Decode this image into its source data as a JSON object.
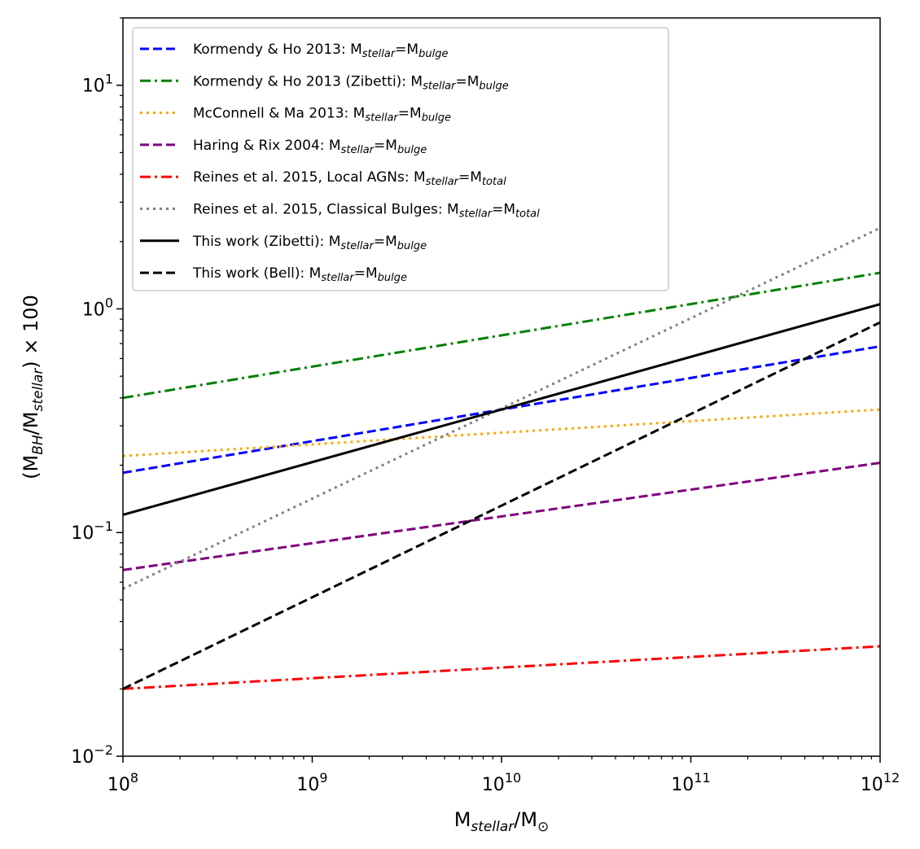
{
  "chart_data": {
    "type": "line",
    "xscale": "log",
    "yscale": "log",
    "xlim": [
      100000000.0,
      1000000000000.0
    ],
    "ylim": [
      0.01,
      20
    ],
    "legend_position": "upper-left",
    "x_ticks": [
      {
        "base": "10",
        "exp": "8"
      },
      {
        "base": "10",
        "exp": "9"
      },
      {
        "base": "10",
        "exp": "10"
      },
      {
        "base": "10",
        "exp": "11"
      },
      {
        "base": "10",
        "exp": "12"
      }
    ],
    "y_ticks": [
      {
        "value": 0.01,
        "base": "10",
        "exp": "−2"
      },
      {
        "value": 0.1,
        "base": "10",
        "exp": "−1"
      },
      {
        "value": 1,
        "base": "10",
        "exp": "0"
      },
      {
        "value": 10,
        "base": "10",
        "exp": "1"
      }
    ],
    "xlabel": {
      "main": "M",
      "sub": "stellar",
      "rest": "/M",
      "symbol": "⊙"
    },
    "ylabel": {
      "p1": "(M",
      "sub1": "BH",
      "p2": "/M",
      "sub2": "stellar",
      "p3": ") × 100"
    },
    "series": [
      {
        "name": "Kormendy & Ho 2013: M",
        "sub1": "stellar",
        "mid": "=M",
        "sub2": "bulge",
        "color": "#0000ff",
        "dash": "dashed",
        "x": [
          100000000.0,
          1000000000000.0
        ],
        "y": [
          0.185,
          0.68
        ]
      },
      {
        "name": "Kormendy & Ho 2013 (Zibetti): M",
        "sub1": "stellar",
        "mid": "=M",
        "sub2": "bulge",
        "color": "#008000",
        "dash": "dashdot",
        "x": [
          100000000.0,
          1000000000000.0
        ],
        "y": [
          0.4,
          1.45
        ]
      },
      {
        "name": "McConnell & Ma 2013: M",
        "sub1": "stellar",
        "mid": "=M",
        "sub2": "bulge",
        "color": "#ffa500",
        "dash": "dotted",
        "x": [
          100000000.0,
          1000000000000.0
        ],
        "y": [
          0.22,
          0.355
        ]
      },
      {
        "name": "Haring & Rix 2004: M",
        "sub1": "stellar",
        "mid": "=M",
        "sub2": "bulge",
        "color": "#800080",
        "dash": "dashed",
        "x": [
          100000000.0,
          1000000000000.0
        ],
        "y": [
          0.068,
          0.205
        ]
      },
      {
        "name": "Reines et al. 2015, Local AGNs: M",
        "sub1": "stellar",
        "mid": "=M",
        "sub2": "total",
        "color": "#ff0000",
        "dash": "dashdot",
        "x": [
          100000000.0,
          1000000000000.0
        ],
        "y": [
          0.02,
          0.031
        ]
      },
      {
        "name": "Reines et al. 2015, Classical Bulges: M",
        "sub1": "stellar",
        "mid": "=M",
        "sub2": "total",
        "color": "#808080",
        "dash": "dotted",
        "x": [
          100000000.0,
          1000000000000.0
        ],
        "y": [
          0.056,
          2.3
        ]
      },
      {
        "name": "This work (Zibetti): M",
        "sub1": "stellar",
        "mid": "=M",
        "sub2": "bulge",
        "color": "#000000",
        "dash": "solid",
        "x": [
          100000000.0,
          1000000000000.0
        ],
        "y": [
          0.12,
          1.05
        ]
      },
      {
        "name": "This work (Bell): M",
        "sub1": "stellar",
        "mid": "=M",
        "sub2": "bulge",
        "color": "#000000",
        "dash": "dashed",
        "x": [
          100000000.0,
          1000000000000.0
        ],
        "y": [
          0.02,
          0.87
        ]
      }
    ]
  }
}
